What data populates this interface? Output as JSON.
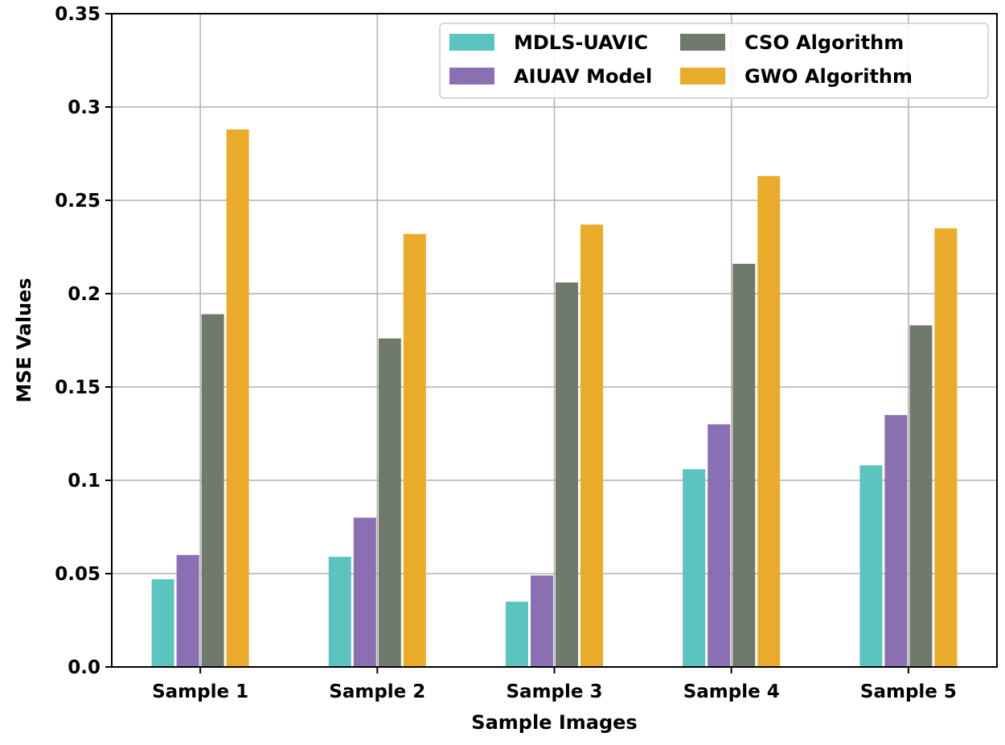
{
  "chart_data": {
    "type": "bar",
    "title": "",
    "xlabel": "Sample Images",
    "ylabel": "MSE Values",
    "categories": [
      "Sample 1",
      "Sample 2",
      "Sample 3",
      "Sample 4",
      "Sample 5"
    ],
    "ylim": [
      0,
      0.35
    ],
    "yticks": [
      {
        "value": 0,
        "label": "0.0"
      },
      {
        "value": 0.05,
        "label": "0.05"
      },
      {
        "value": 0.1,
        "label": "0.1"
      },
      {
        "value": 0.15,
        "label": "0.15"
      },
      {
        "value": 0.2,
        "label": "0.2"
      },
      {
        "value": 0.25,
        "label": "0.25"
      },
      {
        "value": 0.3,
        "label": "0.3"
      },
      {
        "value": 0.35,
        "label": "0.35"
      }
    ],
    "grid": true,
    "legend_position": "top-right",
    "series": [
      {
        "name": "MDLS-UAVIC",
        "color": "#5bc4bf",
        "values": [
          0.047,
          0.059,
          0.035,
          0.106,
          0.108
        ]
      },
      {
        "name": "AIUAV Model",
        "color": "#8a6fb3",
        "values": [
          0.06,
          0.08,
          0.049,
          0.13,
          0.135
        ]
      },
      {
        "name": "CSO Algorithm",
        "color": "#707a6a",
        "values": [
          0.189,
          0.176,
          0.206,
          0.216,
          0.183
        ]
      },
      {
        "name": "GWO Algorithm",
        "color": "#eaab2b",
        "values": [
          0.288,
          0.232,
          0.237,
          0.263,
          0.235
        ]
      }
    ]
  }
}
